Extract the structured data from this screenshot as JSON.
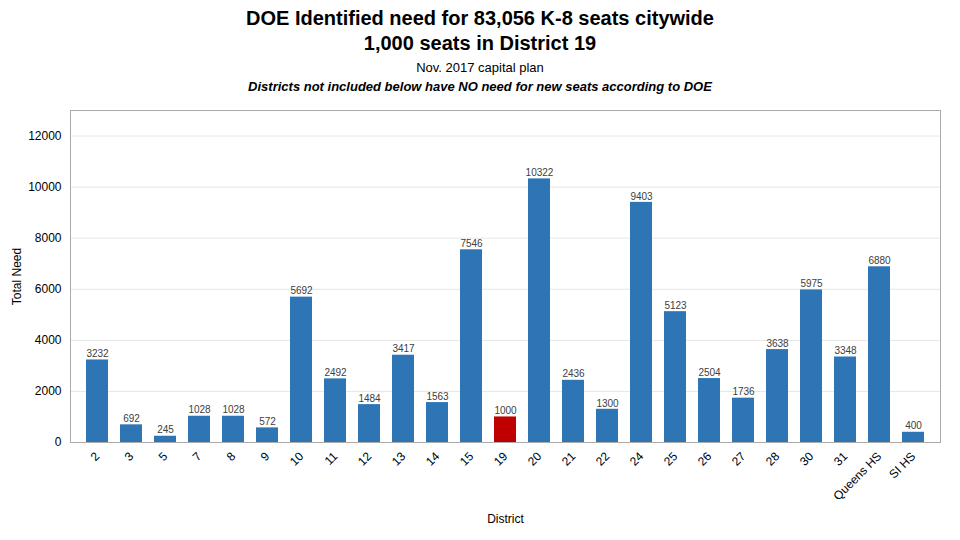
{
  "chart_data": {
    "type": "bar",
    "title": [
      "DOE Identified need for 83,056 K-8 seats citywide",
      "1,000 seats in District 19"
    ],
    "subtitle": "Nov. 2017 capital plan",
    "annotation": "Districts not included below have NO need for new seats according to DOE",
    "xlabel": "District",
    "ylabel": "Total Need",
    "categories": [
      "2",
      "3",
      "5",
      "7",
      "8",
      "9",
      "10",
      "11",
      "12",
      "13",
      "14",
      "15",
      "19",
      "20",
      "21",
      "22",
      "24",
      "25",
      "26",
      "27",
      "28",
      "30",
      "31",
      "Queens HS",
      "SI HS"
    ],
    "values": [
      3232,
      692,
      245,
      1028,
      1028,
      572,
      5692,
      2492,
      1484,
      3417,
      1563,
      7546,
      1000,
      10322,
      2436,
      1300,
      9403,
      5123,
      2504,
      1736,
      3638,
      5975,
      3348,
      6880,
      400
    ],
    "colors": [
      "#2e75b6",
      "#2e75b6",
      "#2e75b6",
      "#2e75b6",
      "#2e75b6",
      "#2e75b6",
      "#2e75b6",
      "#2e75b6",
      "#2e75b6",
      "#2e75b6",
      "#2e75b6",
      "#2e75b6",
      "#c00000",
      "#2e75b6",
      "#2e75b6",
      "#2e75b6",
      "#2e75b6",
      "#2e75b6",
      "#2e75b6",
      "#2e75b6",
      "#2e75b6",
      "#2e75b6",
      "#2e75b6",
      "#2e75b6",
      "#2e75b6"
    ],
    "ylim": [
      0,
      13000
    ],
    "yticks": [
      0,
      2000,
      4000,
      6000,
      8000,
      10000,
      12000
    ],
    "grid": true,
    "data_labels": true
  }
}
